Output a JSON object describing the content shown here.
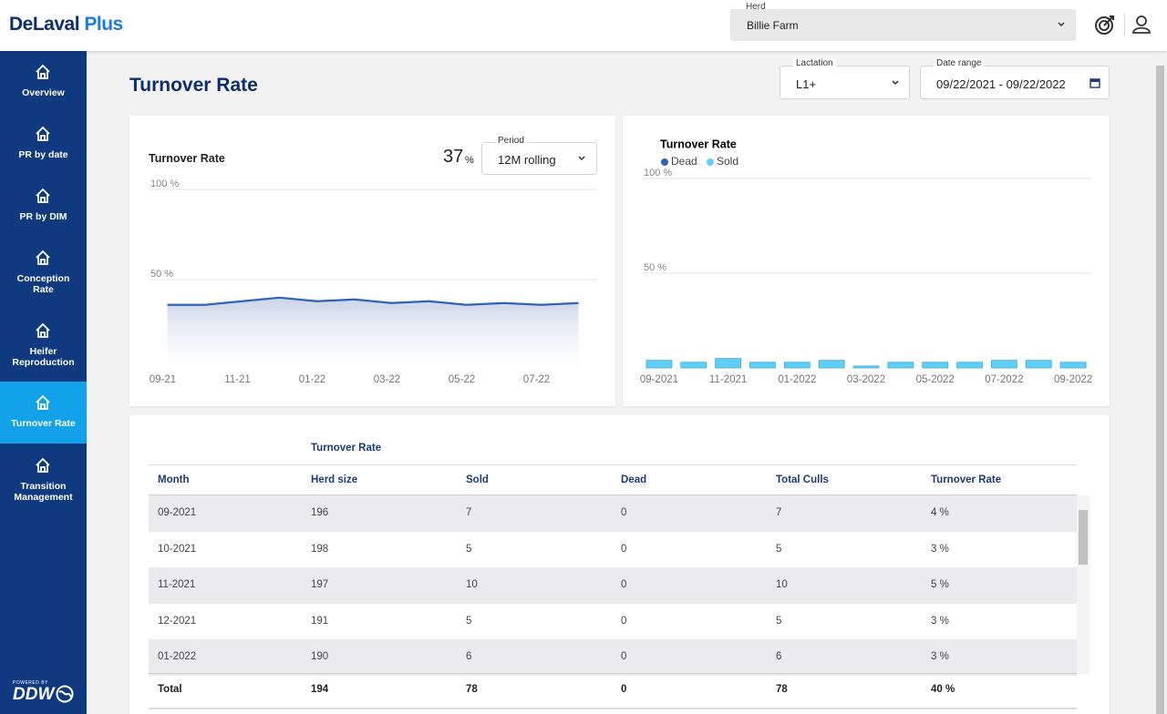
{
  "header": {
    "brand": "DeLaval",
    "brand_plus": "Plus",
    "herd_label": "Herd",
    "herd_value": "Billie Farm"
  },
  "nav": [
    {
      "label": "Overview"
    },
    {
      "label": "PR by date"
    },
    {
      "label": "PR by DIM"
    },
    {
      "label": "Conception Rate"
    },
    {
      "label": "Heifer Reproduction"
    },
    {
      "label": "Turnover Rate"
    },
    {
      "label": "Transition Management"
    }
  ],
  "footer": {
    "powered": "POWERED BY",
    "logo": "DDW"
  },
  "page": {
    "title": "Turnover Rate",
    "lactation_label": "Lactation",
    "lactation_value": "L1+",
    "date_label": "Date range",
    "date_value": "09/22/2021 - 09/22/2022"
  },
  "line_chart": {
    "type": "line",
    "title": "Turnover Rate",
    "kpi_value": 37,
    "kpi_unit": "%",
    "period_label": "Period",
    "period_value": "12M rolling",
    "color": "#2f62b8",
    "categories": [
      "09-21",
      null,
      "11-21",
      null,
      "01-22",
      null,
      "03-22",
      null,
      "05-22",
      null,
      "07-22",
      null
    ],
    "values": [
      36,
      36,
      38,
      40,
      38,
      39,
      37,
      38,
      36,
      37,
      36,
      37
    ],
    "ylim": [
      0,
      100
    ],
    "yticks": [
      {
        "value": 50,
        "label": "50 %"
      },
      {
        "value": 100,
        "label": "100 %"
      }
    ],
    "grid": true
  },
  "bar_chart": {
    "type": "stacked-bar",
    "title": "Turnover Rate",
    "categories": [
      "09-2021",
      null,
      "11-2021",
      null,
      "01-2022",
      null,
      "03-2022",
      null,
      "05-2022",
      null,
      "07-2022",
      null,
      "09-2022"
    ],
    "series": [
      {
        "name": "Dead",
        "color": "#2d62b5",
        "values": [
          0,
          0,
          0,
          0,
          0,
          0,
          0,
          0,
          0,
          0,
          0,
          0,
          0
        ]
      },
      {
        "name": "Sold",
        "color": "#5fcff5",
        "values": [
          4,
          3,
          5,
          3,
          3,
          4,
          1,
          3,
          3,
          3,
          4,
          4,
          3
        ]
      }
    ],
    "ylim": [
      0,
      100
    ],
    "yticks": [
      {
        "value": 50,
        "label": "50 %"
      },
      {
        "value": 100,
        "label": "100 %"
      }
    ],
    "grid": true
  },
  "table": {
    "group_header": "Turnover Rate",
    "columns": [
      "Month",
      "Herd size",
      "Sold",
      "Dead",
      "Total Culls",
      "Turnover Rate"
    ],
    "rows": [
      [
        "09-2021",
        "196",
        "7",
        "0",
        "7",
        "4 %"
      ],
      [
        "10-2021",
        "198",
        "5",
        "0",
        "5",
        "3 %"
      ],
      [
        "11-2021",
        "197",
        "10",
        "0",
        "10",
        "5 %"
      ],
      [
        "12-2021",
        "191",
        "5",
        "0",
        "5",
        "3 %"
      ],
      [
        "01-2022",
        "190",
        "6",
        "0",
        "6",
        "3 %"
      ]
    ],
    "total": [
      "Total",
      "194",
      "78",
      "0",
      "78",
      "40 %"
    ]
  }
}
